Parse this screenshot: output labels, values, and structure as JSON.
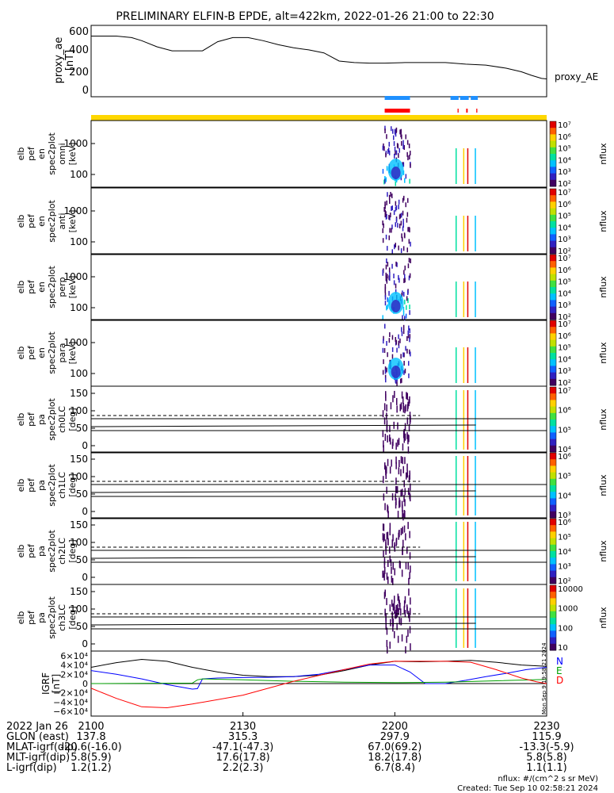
{
  "title": "PRELIMINARY ELFIN-B EPDE, alt=422km, 2022-01-26 21:00 to 22:30",
  "ae_panel": {
    "ylabel": [
      "proxy_ae",
      "[nT]"
    ],
    "yticks": [
      "600",
      "400",
      "200",
      "0"
    ],
    "legend": "proxy_AE",
    "ylim": [
      -50,
      650
    ]
  },
  "indicator_bars": {
    "blue_segments_min": [
      [
        58,
        63
      ],
      [
        71,
        72.6
      ],
      [
        72.9,
        74.6
      ],
      [
        75,
        76.4
      ]
    ],
    "red_segments_min": [
      [
        58,
        63
      ],
      [
        72.4,
        72.6
      ],
      [
        74.1,
        74.4
      ],
      [
        76.1,
        76.3
      ]
    ],
    "yellow_full": true
  },
  "spec_panels": [
    {
      "ylabel": [
        "elb",
        "pef",
        "en",
        "spec2plot",
        "omni",
        "[keV]"
      ],
      "yticks": [
        "1000",
        "100"
      ],
      "cbar_label": "nflux",
      "cbar_ticks": [
        "10⁷",
        "10⁶",
        "10⁵",
        "10⁴",
        "10³",
        "10²"
      ]
    },
    {
      "ylabel": [
        "elb",
        "pef",
        "en",
        "spec2plot",
        "anti",
        "[keV]"
      ],
      "yticks": [
        "1000",
        "100"
      ],
      "cbar_label": "nflux",
      "cbar_ticks": [
        "10⁷",
        "10⁶",
        "10⁵",
        "10⁴",
        "10³",
        "10²"
      ]
    },
    {
      "ylabel": [
        "elb",
        "pef",
        "en",
        "spec2plot",
        "perp",
        "[keV]"
      ],
      "yticks": [
        "1000",
        "100"
      ],
      "cbar_label": "nflux",
      "cbar_ticks": [
        "10⁷",
        "10⁶",
        "10⁵",
        "10⁴",
        "10³",
        "10²"
      ]
    },
    {
      "ylabel": [
        "elb",
        "pef",
        "en",
        "spec2plot",
        "para",
        "[keV]"
      ],
      "yticks": [
        "1000",
        "100"
      ],
      "cbar_label": "nflux",
      "cbar_ticks": [
        "10⁷",
        "10⁶",
        "10⁵",
        "10⁴",
        "10³",
        "10²"
      ]
    },
    {
      "ylabel": [
        "elb",
        "pef",
        "pa",
        "spec2plot",
        "ch0LC",
        "[deg]"
      ],
      "yticks": [
        "150",
        "100",
        "50",
        "0"
      ],
      "cbar_label": "nflux",
      "cbar_ticks": [
        "10⁷",
        "10⁶",
        "10⁵",
        "10⁴"
      ]
    },
    {
      "ylabel": [
        "elb",
        "pef",
        "pa",
        "spec2plot",
        "ch1LC",
        "[deg]"
      ],
      "yticks": [
        "150",
        "100",
        "50",
        "0"
      ],
      "cbar_label": "nflux",
      "cbar_ticks": [
        "10⁶",
        "10⁵",
        "10⁴",
        "10³"
      ]
    },
    {
      "ylabel": [
        "elb",
        "pef",
        "pa",
        "spec2plot",
        "ch2LC",
        "[deg]"
      ],
      "yticks": [
        "150",
        "100",
        "50",
        "0"
      ],
      "cbar_label": "nflux",
      "cbar_ticks": [
        "10⁶",
        "10⁵",
        "10⁴",
        "10³",
        "10²"
      ]
    },
    {
      "ylabel": [
        "elb",
        "pef",
        "pa",
        "spec2plot",
        "ch3LC",
        "[deg]"
      ],
      "yticks": [
        "150",
        "100",
        "50",
        "0"
      ],
      "cbar_label": "nflux",
      "cbar_ticks": [
        "10000",
        "1000",
        "100",
        "10"
      ]
    }
  ],
  "igrf_panel": {
    "ylabel": [
      "IGRF",
      "[nT]"
    ],
    "yticks": [
      "6×10⁴",
      "4×10⁴",
      "2×10⁴",
      "0",
      "−2×10⁴",
      "−4×10⁴",
      "−6×10⁴"
    ],
    "legend": [
      {
        "label": "N",
        "color": "#0000ff"
      },
      {
        "label": "E",
        "color": "#00a000"
      },
      {
        "label": "D",
        "color": "#ff0000"
      }
    ],
    "side_text": "Mon Sep 9 19:58:21 2024"
  },
  "x_axis": {
    "date_label": "2022 Jan 26",
    "tick_labels": [
      "2100",
      "2130",
      "2200",
      "2230"
    ],
    "rows": [
      {
        "label": "GLON (east)",
        "values": [
          "137.8",
          "315.3",
          "297.9",
          "115.9"
        ]
      },
      {
        "label": "MLAT-igrf(dip)",
        "values": [
          "-20.6(-16.0)",
          "-47.1(-47.3)",
          "67.0(69.2)",
          "-13.3(-5.9)"
        ]
      },
      {
        "label": "MLT-igrf(dip)",
        "values": [
          "5.8(5.9)",
          "17.6(17.8)",
          "18.2(17.8)",
          "5.8(5.8)"
        ]
      },
      {
        "label": "L-igrf(dip)",
        "values": [
          "1.2(1.2)",
          "2.2(2.3)",
          "6.7(8.4)",
          "1.1(1.1)"
        ]
      }
    ]
  },
  "footer": {
    "units": "nflux: #/(cm^2 s sr MeV)",
    "created": "Created: Tue Sep 10 02:58:21 2024"
  },
  "chart_data": {
    "type": "line",
    "title": "PRELIMINARY ELFIN-B EPDE, alt=422km, 2022-01-26 21:00 to 22:30",
    "x_range_minutes": [
      0,
      90
    ],
    "proxy_ae": {
      "x_min": [
        0,
        2,
        5,
        8,
        10,
        13,
        16,
        19,
        22,
        25,
        28,
        31,
        34,
        37,
        40,
        43,
        46,
        49,
        52,
        55,
        58,
        62,
        66,
        70,
        74,
        78,
        82,
        85,
        87,
        89,
        90
      ],
      "values": [
        545,
        545,
        545,
        530,
        500,
        440,
        400,
        400,
        400,
        490,
        530,
        530,
        500,
        460,
        430,
        410,
        380,
        300,
        285,
        280,
        280,
        285,
        285,
        285,
        270,
        260,
        230,
        195,
        160,
        130,
        125
      ]
    },
    "igrf": {
      "N": {
        "x_min": [
          0,
          5,
          10,
          15,
          20,
          21,
          22,
          25,
          30,
          35,
          40,
          45,
          50,
          55,
          60,
          63,
          66,
          70,
          74,
          78,
          82,
          86,
          90
        ],
        "values": [
          28000,
          20000,
          10000,
          -2000,
          -12000,
          -11000,
          10000,
          12000,
          13000,
          13500,
          15000,
          20000,
          30000,
          40000,
          40000,
          25000,
          0,
          0,
          7000,
          15000,
          22000,
          30000,
          35000
        ]
      },
      "E": {
        "x_min": [
          0,
          20,
          21,
          22,
          30,
          40,
          50,
          60,
          70,
          80,
          90
        ],
        "values": [
          0,
          1000,
          8000,
          10000,
          8000,
          5000,
          3000,
          2000,
          3000,
          6000,
          9000
        ]
      },
      "D": {
        "x_min": [
          0,
          5,
          10,
          15,
          20,
          30,
          40,
          50,
          55,
          60,
          65,
          70,
          75,
          80,
          85,
          88,
          90
        ],
        "values": [
          -10000,
          -32000,
          -50000,
          -52000,
          -44000,
          -25000,
          5000,
          30000,
          42000,
          48000,
          48000,
          48000,
          46000,
          30000,
          12000,
          4000,
          0
        ]
      },
      "total": {
        "x_min": [
          0,
          5,
          10,
          15,
          20,
          25,
          30,
          35,
          40,
          45,
          50,
          55,
          60,
          65,
          70,
          75,
          80,
          85,
          90
        ],
        "values": [
          35000,
          45000,
          52000,
          48000,
          35000,
          25000,
          18000,
          15000,
          15000,
          18000,
          28000,
          40000,
          48000,
          47000,
          48000,
          50000,
          46000,
          40000,
          37000
        ]
      }
    }
  }
}
